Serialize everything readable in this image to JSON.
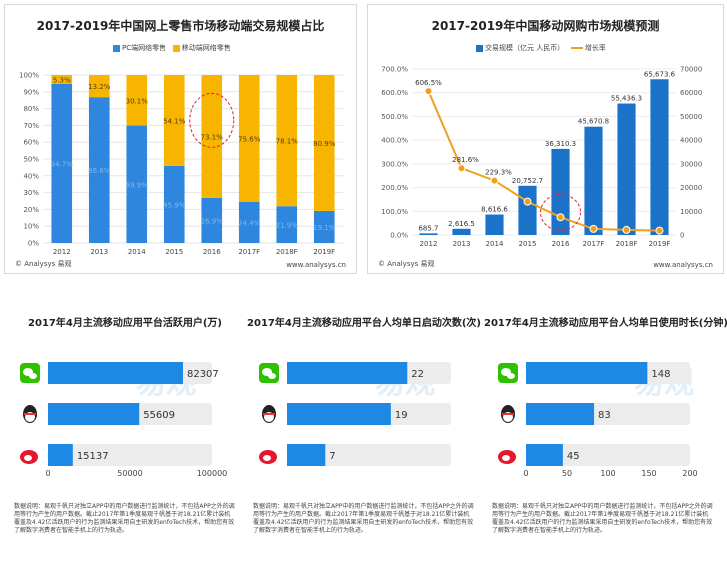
{
  "chart_data": [
    {
      "type": "bar",
      "title": "2017-2019年中国网上零售市场移动端交易规模占比",
      "categories": [
        "2012",
        "2013",
        "2014",
        "2015",
        "2016",
        "2017F",
        "2018F",
        "2019F"
      ],
      "series": [
        {
          "name": "PC端网络零售",
          "values": [
            94.7,
            86.8,
            69.9,
            45.9,
            26.9,
            24.4,
            21.9,
            19.1
          ],
          "labels": [
            "94.7%",
            "86.8%",
            "69.9%",
            "45.9%",
            "26.9%",
            "24.4%",
            "21.9%",
            "19.1%"
          ],
          "color": "#2e86de"
        },
        {
          "name": "移动端网络零售",
          "values": [
            5.3,
            13.2,
            30.1,
            54.1,
            73.1,
            75.6,
            78.1,
            80.9
          ],
          "labels": [
            "5.3%",
            "13.2%",
            "30.1%",
            "54.1%",
            "73.1%",
            "75.6%",
            "78.1%",
            "80.9%"
          ],
          "color": "#f7b500"
        }
      ],
      "yticks": [
        "0%",
        "10%",
        "20%",
        "30%",
        "40%",
        "50%",
        "60%",
        "70%",
        "80%",
        "90%",
        "100%"
      ],
      "ylim": [
        0,
        100
      ],
      "footer_left": "© Analysys 易观",
      "footer_right": "www.analysys.cn"
    },
    {
      "type": "bar",
      "title": "2017-2019年中国移动网购市场规模预测",
      "categories": [
        "2012",
        "2013",
        "2014",
        "2015",
        "2016",
        "2017F",
        "2018F",
        "2019F"
      ],
      "bar_series": {
        "name": "交易规模（亿元 人民币）",
        "values": [
          685.7,
          2616.5,
          8616.6,
          20752.7,
          36310.3,
          45670.8,
          55436.3,
          65673.6
        ],
        "labels": [
          "685.7",
          "2,616.5",
          "8,616.6",
          "20,752.7",
          "36,310.3",
          "45,670.8",
          "55,436.3",
          "65,673.6"
        ],
        "color": "#1a73c9"
      },
      "line_series": {
        "name": "增长率",
        "values": [
          606.5,
          281.6,
          229.3,
          140.8,
          75.0,
          25.8,
          21.4,
          18.5
        ],
        "labels": [
          "606.5%",
          "281.6%",
          "229.3%"
        ],
        "color": "#f0a020"
      },
      "left_axis": {
        "ticks": [
          "0.0%",
          "100.0%",
          "200.0%",
          "300.0%",
          "400.0%",
          "500.0%",
          "600.0%",
          "700.0%"
        ],
        "range": [
          0,
          700
        ]
      },
      "right_axis": {
        "ticks": [
          "0",
          "10000",
          "20000",
          "30000",
          "40000",
          "50000",
          "60000",
          "70000"
        ],
        "range": [
          0,
          70000
        ]
      },
      "footer_left": "© Analysys 易观",
      "footer_right": "www.analysys.cn"
    },
    {
      "type": "bar",
      "title": "2017年4月主流移动应用平台活跃用户(万)",
      "categories": [
        "微信",
        "QQ",
        "微博"
      ],
      "values": [
        82307,
        55609,
        15137
      ],
      "labels": [
        "82307",
        "55609",
        "15137"
      ],
      "xticks": [
        "0",
        "50000",
        "100000"
      ],
      "xlim": [
        0,
        100000
      ]
    },
    {
      "type": "bar",
      "title": "2017年4月主流移动应用平台人均单日启动次数(次)",
      "categories": [
        "微信",
        "QQ",
        "微博"
      ],
      "values": [
        22,
        19,
        7
      ],
      "labels": [
        "22",
        "19",
        "7"
      ]
    },
    {
      "type": "bar",
      "title": "2017年4月主流移动应用平台人均单日使用时长(分钟)",
      "categories": [
        "微信",
        "QQ",
        "微博"
      ],
      "values": [
        148,
        83,
        45
      ],
      "labels": [
        "148",
        "83",
        "45"
      ],
      "xticks": [
        "0",
        "50",
        "100",
        "150",
        "200"
      ],
      "xlim": [
        0,
        200
      ]
    }
  ],
  "note": "数据说明：易观千帆只对独立APP中的用户数据进行监测统计，不包括APP之外的调用等行为产生的用户数据。截止2017年第1季度易观千帆基于对18.21亿累计装机覆盖及4.42亿活跃用户的行为监测结果采用自主研发的enfoTech技术，帮助您有效了解数字消费者在智能手机上的行为轨迹。",
  "watermark": "易观",
  "colors": {
    "blue": "#2e86de",
    "orange": "#f7b500",
    "lightgray": "#ececec",
    "wechat": "#2dc100",
    "weibo": "#e6162d"
  }
}
